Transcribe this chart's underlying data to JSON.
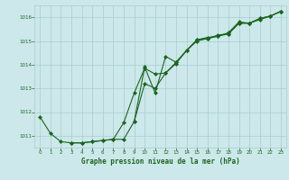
{
  "title": "Graphe pression niveau de la mer (hPa)",
  "bg_color": "#cce8ea",
  "grid_color": "#aacccc",
  "line_color": "#1a6620",
  "marker_color": "#1a6620",
  "tick_color": "#1a6620",
  "title_color": "#1a6620",
  "x_ticks": [
    0,
    1,
    2,
    3,
    4,
    5,
    6,
    7,
    8,
    9,
    10,
    11,
    12,
    13,
    14,
    15,
    16,
    17,
    18,
    19,
    20,
    21,
    22,
    23
  ],
  "ylim": [
    1010.5,
    1016.5
  ],
  "y_ticks": [
    1011,
    1012,
    1013,
    1014,
    1015,
    1016
  ],
  "line1_x": [
    0,
    1,
    2,
    3,
    4,
    5,
    6,
    7,
    8,
    9,
    10,
    11,
    12,
    13,
    14,
    15,
    16,
    17,
    18,
    19,
    20,
    21,
    22,
    23
  ],
  "line1_y": [
    1011.8,
    1011.1,
    1010.75,
    1010.7,
    1010.7,
    1010.75,
    1010.8,
    1010.85,
    1010.85,
    1011.6,
    1013.9,
    1012.8,
    1014.35,
    1014.1,
    1014.6,
    1015.0,
    1015.1,
    1015.25,
    1015.3,
    1015.75,
    1015.75,
    1015.9,
    1016.05,
    1016.25
  ],
  "line2_x": [
    3,
    4,
    5,
    6,
    7,
    8,
    9,
    10,
    11,
    12,
    13,
    14,
    15,
    16,
    17,
    18,
    19,
    20,
    21,
    22,
    23
  ],
  "line2_y": [
    1010.7,
    1010.7,
    1010.75,
    1010.8,
    1010.85,
    1011.55,
    1012.8,
    1013.85,
    1013.6,
    1013.65,
    1014.1,
    1014.6,
    1015.05,
    1015.1,
    1015.2,
    1015.3,
    1015.75,
    1015.75,
    1015.95,
    1016.05,
    1016.25
  ],
  "line3_x": [
    9,
    10,
    11,
    12,
    13,
    14,
    15,
    16,
    17,
    18,
    19,
    20,
    21,
    22,
    23
  ],
  "line3_y": [
    1011.6,
    1013.2,
    1013.0,
    1013.65,
    1014.05,
    1014.6,
    1015.05,
    1015.15,
    1015.2,
    1015.35,
    1015.8,
    1015.75,
    1015.95,
    1016.05,
    1016.25
  ]
}
